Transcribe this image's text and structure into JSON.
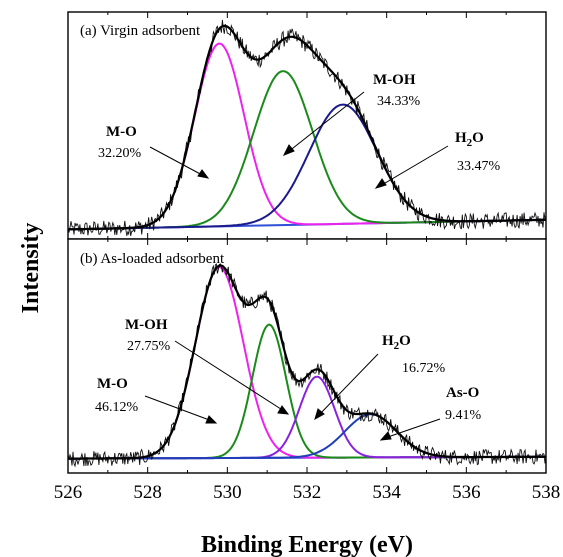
{
  "chart_data": {
    "type": "line",
    "xlabel": "Binding Energy (eV)",
    "ylabel": "Intensity",
    "xlim": [
      526,
      538
    ],
    "x_ticks": [
      "526",
      "528",
      "530",
      "532",
      "534",
      "536",
      "538"
    ],
    "colors": {
      "raw": "#111111",
      "envelope": "#000000",
      "M-O": "#ee22ee",
      "M-OH": "#1a8a1a",
      "H2O_a": "#1a1a8c",
      "H2O_b": "#8a22dd",
      "As-O": "#1f3fb8",
      "baseline": "#2f4fd8"
    },
    "panels": [
      {
        "label": "(a) Virgin adsorbent",
        "ylim": [
          0,
          1.18
        ],
        "baseline": [
          0.05,
          0.1
        ],
        "components": [
          {
            "name": "M-O",
            "name_sub": "",
            "percent": "32.20%",
            "center": 529.8,
            "sigma": 0.62,
            "height": 0.95,
            "color": "#ee22ee"
          },
          {
            "name": "M-OH",
            "name_sub": "",
            "percent": "34.33%",
            "center": 531.4,
            "sigma": 0.74,
            "height": 0.8,
            "color": "#1a8a1a"
          },
          {
            "name": "H",
            "name_sub": "2",
            "name_after": "O",
            "percent": "33.47%",
            "center": 532.9,
            "sigma": 0.85,
            "height": 0.62,
            "color": "#1a1a8c"
          }
        ]
      },
      {
        "label": "(b) As-loaded adsorbent",
        "ylim": [
          0,
          1.3
        ],
        "baseline": [
          0.08,
          0.09
        ],
        "components": [
          {
            "name": "M-O",
            "name_sub": "",
            "percent": "46.12%",
            "center": 529.8,
            "sigma": 0.6,
            "height": 1.06,
            "color": "#ee22ee"
          },
          {
            "name": "M-OH",
            "name_sub": "",
            "percent": "27.75%",
            "center": 531.05,
            "sigma": 0.42,
            "height": 0.74,
            "color": "#1a8a1a"
          },
          {
            "name": "H",
            "name_sub": "2",
            "name_after": "O",
            "percent": "16.72%",
            "center": 532.25,
            "sigma": 0.44,
            "height": 0.45,
            "color": "#8a22dd"
          },
          {
            "name": "As-O",
            "name_sub": "",
            "percent": "9.41%",
            "center": 533.6,
            "sigma": 0.65,
            "height": 0.24,
            "color": "#1f3fb8"
          }
        ]
      }
    ]
  }
}
